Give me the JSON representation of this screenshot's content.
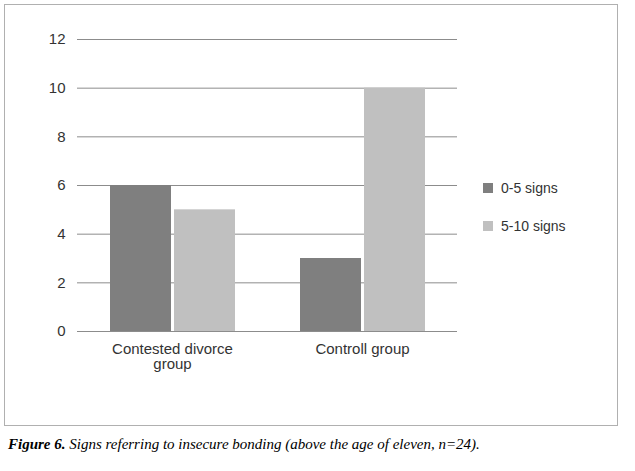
{
  "chart_data": {
    "type": "bar",
    "title": "Figure 6. Signs referring to insecure bonding (above the age of eleven, n=24).",
    "categories": [
      "Contested divorce group",
      "Controll group"
    ],
    "series": [
      {
        "name": "0-5 signs",
        "color": "#7f7f7f",
        "values": [
          6,
          3
        ]
      },
      {
        "name": "5-10 signs",
        "color": "#c0c0c0",
        "values": [
          5,
          10
        ]
      }
    ],
    "ylim": [
      0,
      12
    ],
    "yticks": [
      0,
      2,
      4,
      6,
      8,
      10,
      12
    ],
    "grid": true,
    "legend": "right"
  }
}
